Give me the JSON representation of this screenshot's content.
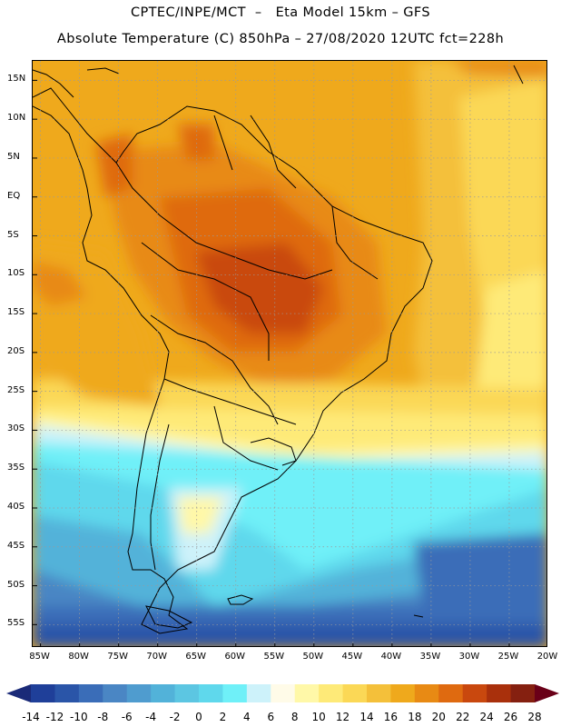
{
  "header": {
    "line1": "CPTEC/INPE/MCT  –   Eta Model 15km – GFS",
    "line2": "Absolute Temperature (C) 850hPa – 27/08/2020 12UTC fct=228h"
  },
  "axes": {
    "lat_labels": [
      "15N",
      "10N",
      "5N",
      "EQ",
      "5S",
      "10S",
      "15S",
      "20S",
      "25S",
      "30S",
      "35S",
      "40S",
      "45S",
      "50S",
      "55S"
    ],
    "lat_values": [
      15,
      10,
      5,
      0,
      -5,
      -10,
      -15,
      -20,
      -25,
      -30,
      -35,
      -40,
      -45,
      -50,
      -55
    ],
    "lon_labels": [
      "85W",
      "80W",
      "75W",
      "70W",
      "65W",
      "60W",
      "55W",
      "50W",
      "45W",
      "40W",
      "35W",
      "30W",
      "25W",
      "20W"
    ],
    "lon_values": [
      -85,
      -80,
      -75,
      -70,
      -65,
      -60,
      -55,
      -50,
      -45,
      -40,
      -35,
      -30,
      -25,
      -20
    ],
    "lat_range": [
      -58,
      17.5
    ],
    "lon_range": [
      -86,
      -20
    ]
  },
  "colorbar": {
    "labels": [
      "-14",
      "-12",
      "-10",
      "-8",
      "-6",
      "-4",
      "-2",
      "0",
      "2",
      "4",
      "6",
      "8",
      "10",
      "12",
      "14",
      "16",
      "18",
      "20",
      "22",
      "24",
      "26",
      "28"
    ],
    "colors": [
      "#1f3f99",
      "#2a55a8",
      "#3a6db8",
      "#4a86c4",
      "#4f9ccf",
      "#52b2d9",
      "#5cc6e2",
      "#5fd8ec",
      "#6ff0f8",
      "#cdf2fa",
      "#fffbe8",
      "#fff8a8",
      "#feea78",
      "#fbd856",
      "#f4c03a",
      "#efa91c",
      "#e88a14",
      "#df6a10",
      "#c9480e",
      "#a9300c",
      "#852010"
    ],
    "left_arrow_color": "#1a2a78",
    "right_arrow_color": "#6a0018"
  }
}
